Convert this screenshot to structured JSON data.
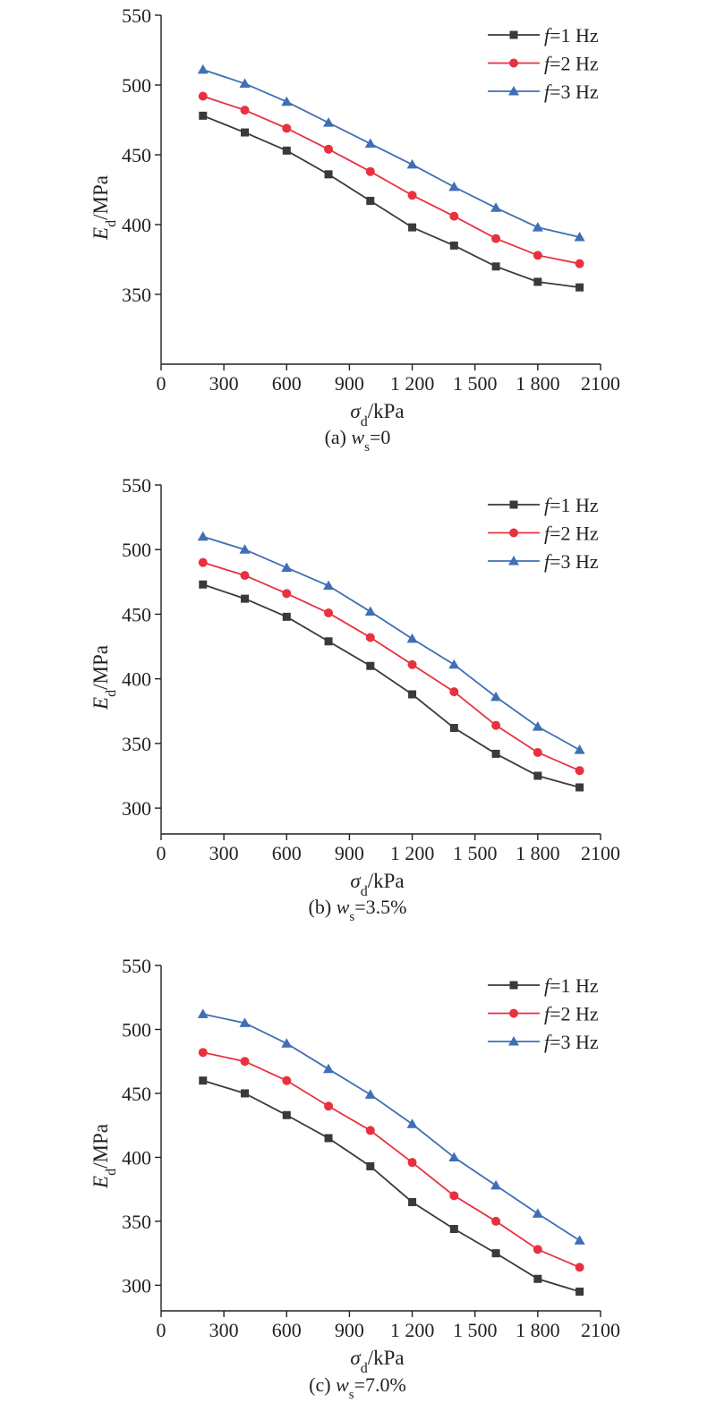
{
  "figure": {
    "x_ticks": [
      "0",
      "300",
      "600",
      "900",
      "1 200",
      "1 500",
      "1 800",
      "2100"
    ],
    "xlabel": {
      "sym": "σ",
      "sub": "d",
      "unit": "/kPa"
    },
    "ylabel": {
      "sym": "E",
      "sub": "d",
      "unit": "/MPa"
    },
    "legend": [
      {
        "sym": "f",
        "text": "=1 Hz",
        "color": "#3a3a3a",
        "marker": "square"
      },
      {
        "sym": "f",
        "text": "=2 Hz",
        "color": "#e8313f",
        "marker": "circle"
      },
      {
        "sym": "f",
        "text": "=3 Hz",
        "color": "#3f6fb5",
        "marker": "triangle"
      }
    ],
    "captions": [
      {
        "pre": "(a) ",
        "sym": "w",
        "sub": "s",
        "post": "=0"
      },
      {
        "pre": "(b) ",
        "sym": "w",
        "sub": "s",
        "post": "=3.5%"
      },
      {
        "pre": "(c) ",
        "sym": "w",
        "sub": "s",
        "post": "=7.0%"
      }
    ]
  },
  "chart_data": [
    {
      "type": "line",
      "x": [
        200,
        400,
        600,
        800,
        1000,
        1200,
        1400,
        1600,
        1800,
        2000
      ],
      "xlim": [
        0,
        2100
      ],
      "ylim": [
        300,
        550
      ],
      "y_ticks": [
        350,
        400,
        450,
        500,
        550
      ],
      "series": [
        {
          "name": "f=1 Hz",
          "values": [
            478,
            466,
            453,
            436,
            417,
            398,
            385,
            370,
            359,
            355
          ]
        },
        {
          "name": "f=2 Hz",
          "values": [
            492,
            482,
            469,
            454,
            438,
            421,
            406,
            390,
            378,
            372
          ]
        },
        {
          "name": "f=3 Hz",
          "values": [
            511,
            501,
            488,
            473,
            458,
            443,
            427,
            412,
            398,
            391
          ]
        }
      ],
      "legend_position": "top-right"
    },
    {
      "type": "line",
      "x": [
        200,
        400,
        600,
        800,
        1000,
        1200,
        1400,
        1600,
        1800,
        2000
      ],
      "xlim": [
        0,
        2100
      ],
      "ylim": [
        280,
        550
      ],
      "y_ticks": [
        300,
        350,
        400,
        450,
        500,
        550
      ],
      "series": [
        {
          "name": "f=1 Hz",
          "values": [
            473,
            462,
            448,
            429,
            410,
            388,
            362,
            342,
            325,
            316
          ]
        },
        {
          "name": "f=2 Hz",
          "values": [
            490,
            480,
            466,
            451,
            432,
            411,
            390,
            364,
            343,
            329
          ]
        },
        {
          "name": "f=3 Hz",
          "values": [
            510,
            500,
            486,
            472,
            452,
            431,
            411,
            386,
            363,
            345
          ]
        }
      ],
      "legend_position": "top-right"
    },
    {
      "type": "line",
      "x": [
        200,
        400,
        600,
        800,
        1000,
        1200,
        1400,
        1600,
        1800,
        2000
      ],
      "xlim": [
        0,
        2100
      ],
      "ylim": [
        280,
        550
      ],
      "y_ticks": [
        300,
        350,
        400,
        450,
        500,
        550
      ],
      "series": [
        {
          "name": "f=1 Hz",
          "values": [
            460,
            450,
            433,
            415,
            393,
            365,
            344,
            325,
            305,
            295
          ]
        },
        {
          "name": "f=2 Hz",
          "values": [
            482,
            475,
            460,
            440,
            421,
            396,
            370,
            350,
            328,
            314
          ]
        },
        {
          "name": "f=3 Hz",
          "values": [
            512,
            505,
            489,
            469,
            449,
            426,
            400,
            378,
            356,
            335
          ]
        }
      ],
      "legend_position": "top-right"
    }
  ]
}
